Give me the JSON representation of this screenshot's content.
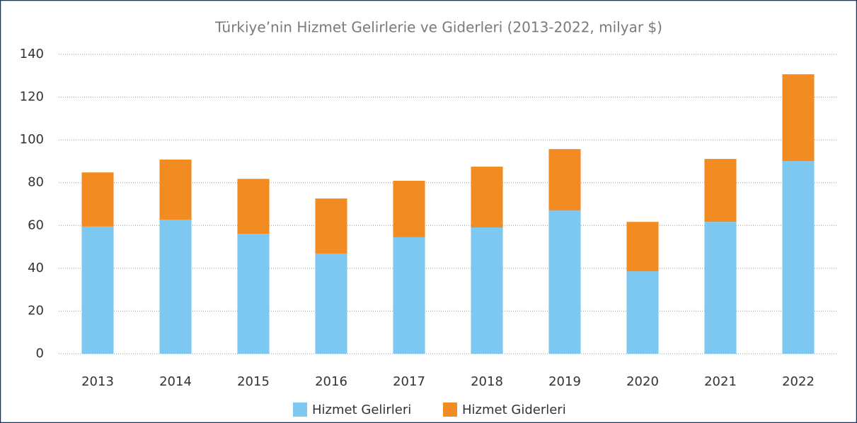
{
  "chart_data": {
    "type": "bar",
    "stacked": true,
    "title": "Türkiye’nin Hizmet Gelirlerie ve Giderleri (2013-2022, milyar $)",
    "categories": [
      "2013",
      "2014",
      "2015",
      "2016",
      "2017",
      "2018",
      "2019",
      "2020",
      "2021",
      "2022"
    ],
    "series": [
      {
        "name": "Hizmet Gelirleri",
        "color": "#7cc8f0",
        "values": [
          59.5,
          62.7,
          56.1,
          46.9,
          54.5,
          59.1,
          67.0,
          38.6,
          61.7,
          90.1
        ]
      },
      {
        "name": "Hizmet Giderleri",
        "color": "#f28c22",
        "values": [
          25.3,
          28.1,
          25.7,
          25.7,
          26.4,
          28.4,
          28.7,
          23.1,
          29.4,
          40.6
        ]
      }
    ],
    "ylim": [
      0,
      140
    ],
    "yticks": [
      0,
      20,
      40,
      60,
      80,
      100,
      120,
      140
    ],
    "grid": true,
    "legend": "bottom"
  }
}
